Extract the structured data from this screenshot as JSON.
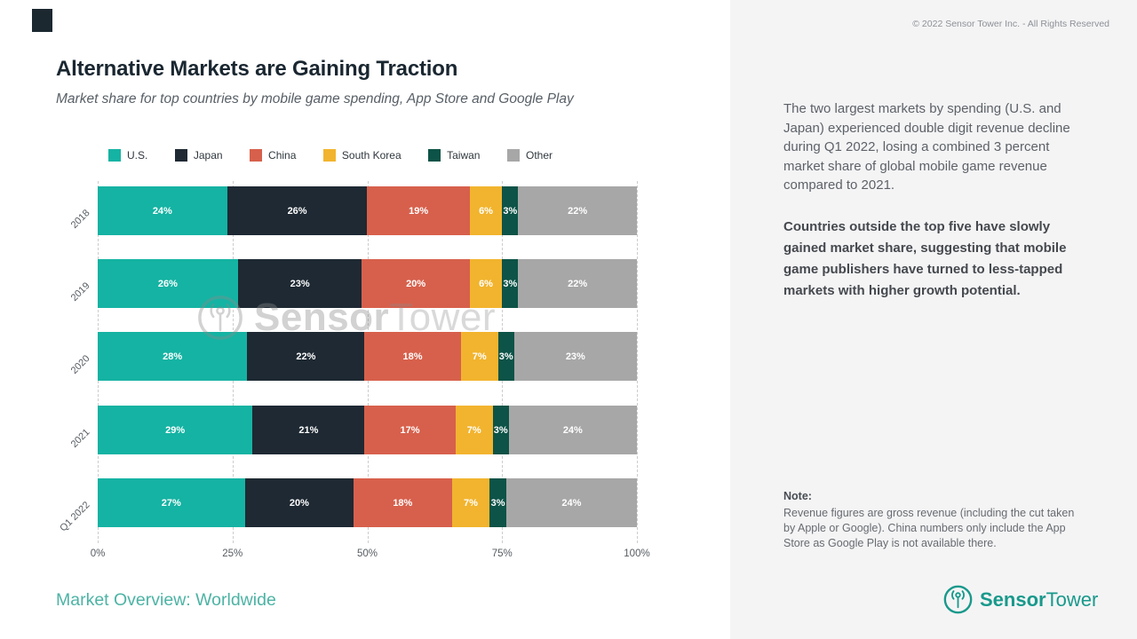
{
  "slide": {
    "title": "Alternative Markets are Gaining Traction",
    "subtitle": "Market share for top countries by mobile game spending, App Store and Google Play",
    "footer": "Market Overview: Worldwide",
    "copyright": "© 2022 Sensor Tower Inc. - All Rights Reserved"
  },
  "chart_data": {
    "type": "bar",
    "orientation": "horizontal",
    "stacked": true,
    "title": "Market share for top countries by mobile game spending, App Store and Google Play",
    "categories": [
      "2018",
      "2019",
      "2020",
      "2021",
      "Q1 2022"
    ],
    "series": [
      {
        "name": "U.S.",
        "color": "#15b3a3",
        "values": [
          24,
          26,
          28,
          29,
          27
        ]
      },
      {
        "name": "Japan",
        "color": "#1e2933",
        "values": [
          26,
          23,
          22,
          21,
          20
        ]
      },
      {
        "name": "China",
        "color": "#d7604c",
        "values": [
          19,
          20,
          18,
          17,
          18
        ]
      },
      {
        "name": "South Korea",
        "color": "#f2b42e",
        "values": [
          6,
          6,
          7,
          7,
          7
        ]
      },
      {
        "name": "Taiwan",
        "color": "#0d5347",
        "values": [
          3,
          3,
          3,
          3,
          3
        ]
      },
      {
        "name": "Other",
        "color": "#a7a7a7",
        "values": [
          22,
          22,
          23,
          24,
          24
        ]
      }
    ],
    "x_ticks": [
      "0%",
      "25%",
      "50%",
      "75%",
      "100%"
    ],
    "xlim": [
      0,
      100
    ],
    "value_suffix": "%",
    "legend_position": "top",
    "grid": "vertical-dashed"
  },
  "sidebar": {
    "paragraph1": "The two largest markets by spending (U.S. and Japan) experienced double digit revenue decline during Q1 2022, losing a combined 3 percent market share of global mobile game revenue compared to 2021.",
    "paragraph2": "Countries outside the top five have slowly gained market share, suggesting that mobile game publishers have turned to less-tapped markets with higher growth potential.",
    "note_label": "Note:",
    "note_body": "Revenue figures are gross revenue (including the cut taken by Apple or Google). China numbers only include the App Store as Google Play is not available there.",
    "logo_text_bold": "Sensor",
    "logo_text_regular": "Tower"
  },
  "watermark": {
    "text_bold": "Sensor",
    "text_regular": "Tower"
  }
}
